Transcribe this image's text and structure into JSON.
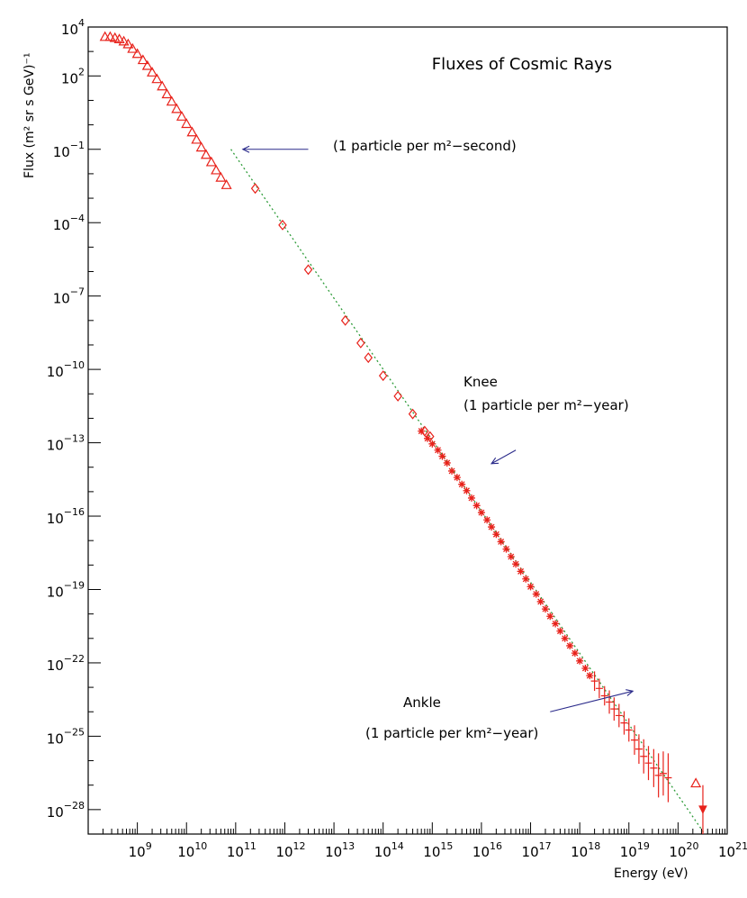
{
  "chart_data": {
    "type": "scatter",
    "title": "Fluxes of Cosmic Rays",
    "xlabel": "Energy (eV)",
    "ylabel": "Flux (m² sr s GeV)⁻¹",
    "xscale": "log",
    "yscale": "log",
    "xlim": [
      100000000.0,
      1e+21
    ],
    "ylim": [
      1e-29,
      10000.0
    ],
    "grid": false,
    "x_ticks": [
      {
        "base": "10",
        "exp": "9",
        "value": 1000000000.0
      },
      {
        "base": "10",
        "exp": "10",
        "value": 10000000000.0
      },
      {
        "base": "10",
        "exp": "11",
        "value": 100000000000.0
      },
      {
        "base": "10",
        "exp": "12",
        "value": 1000000000000.0
      },
      {
        "base": "10",
        "exp": "13",
        "value": 10000000000000.0
      },
      {
        "base": "10",
        "exp": "14",
        "value": 100000000000000.0
      },
      {
        "base": "10",
        "exp": "15",
        "value": 1000000000000000.0
      },
      {
        "base": "10",
        "exp": "16",
        "value": 1e+16
      },
      {
        "base": "10",
        "exp": "17",
        "value": 1e+17
      },
      {
        "base": "10",
        "exp": "18",
        "value": 1e+18
      },
      {
        "base": "10",
        "exp": "19",
        "value": 1e+19
      },
      {
        "base": "10",
        "exp": "20",
        "value": 1e+20
      },
      {
        "base": "10",
        "exp": "21",
        "value": 1e+21
      }
    ],
    "y_ticks": [
      {
        "base": "10",
        "exp": "4",
        "value": 10000.0
      },
      {
        "base": "10",
        "exp": "2",
        "value": 100.0
      },
      {
        "base": "10",
        "exp": "−1",
        "value": 0.1
      },
      {
        "base": "10",
        "exp": "−4",
        "value": 0.0001
      },
      {
        "base": "10",
        "exp": "−7",
        "value": 1e-07
      },
      {
        "base": "10",
        "exp": "−10",
        "value": 1e-10
      },
      {
        "base": "10",
        "exp": "−13",
        "value": 1e-13
      },
      {
        "base": "10",
        "exp": "−16",
        "value": 1e-16
      },
      {
        "base": "10",
        "exp": "−19",
        "value": 1e-19
      },
      {
        "base": "10",
        "exp": "−22",
        "value": 1e-22
      },
      {
        "base": "10",
        "exp": "−25",
        "value": 1e-25
      },
      {
        "base": "10",
        "exp": "−28",
        "value": 1e-28
      }
    ],
    "series": [
      {
        "marker": "triangle",
        "color": "#e8211a",
        "points": [
          [
            220000000.0,
            4000
          ],
          [
            280000000.0,
            4000
          ],
          [
            350000000.0,
            3600
          ],
          [
            430000000.0,
            3200
          ],
          [
            530000000.0,
            2600
          ],
          [
            650000000.0,
            2000
          ],
          [
            800000000.0,
            1300
          ],
          [
            1000000000.0,
            800
          ],
          [
            1300000000.0,
            450
          ],
          [
            1600000000.0,
            260
          ],
          [
            2000000000.0,
            140
          ],
          [
            2500000000.0,
            75
          ],
          [
            3200000000.0,
            38
          ],
          [
            4000000000.0,
            18
          ],
          [
            5000000000.0,
            9
          ],
          [
            6300000000.0,
            4.5
          ],
          [
            8000000000.0,
            2.2
          ],
          [
            10000000000.0,
            1.1
          ],
          [
            13000000000.0,
            0.5
          ],
          [
            16000000000.0,
            0.25
          ],
          [
            20000000000.0,
            0.12
          ],
          [
            25000000000.0,
            0.06
          ],
          [
            32000000000.0,
            0.03
          ],
          [
            40000000000.0,
            0.014
          ],
          [
            50000000000.0,
            0.007
          ],
          [
            65000000000.0,
            0.0035
          ],
          [
            2.3e+20,
            1.2e-27
          ]
        ]
      },
      {
        "marker": "diamond",
        "color": "#e8211a",
        "points": [
          [
            250000000000.0,
            0.0025
          ],
          [
            900000000000.0,
            8e-05
          ],
          [
            3000000000000.0,
            1.2e-06
          ],
          [
            17000000000000.0,
            1e-08
          ],
          [
            35000000000000.0,
            1.2e-09
          ],
          [
            50000000000000.0,
            3e-10
          ],
          [
            100000000000000.0,
            5.5e-11
          ],
          [
            200000000000000.0,
            8e-12
          ],
          [
            400000000000000.0,
            1.5e-12
          ],
          [
            700000000000000.0,
            3e-13
          ],
          [
            900000000000000.0,
            1.8e-13
          ]
        ]
      },
      {
        "marker": "star",
        "color": "#e8211a",
        "points": [
          [
            600000000000000.0,
            3e-13
          ],
          [
            800000000000000.0,
            1.5e-13
          ],
          [
            1000000000000000.0,
            9e-14
          ],
          [
            1300000000000000.0,
            5e-14
          ],
          [
            1600000000000000.0,
            2.8e-14
          ],
          [
            2000000000000000.0,
            1.5e-14
          ],
          [
            2500000000000000.0,
            7e-15
          ],
          [
            3200000000000000.0,
            3.8e-15
          ],
          [
            4000000000000000.0,
            2e-15
          ],
          [
            5000000000000000.0,
            1.1e-15
          ],
          [
            6300000000000000.0,
            5.5e-16
          ],
          [
            8000000000000000.0,
            2.7e-16
          ],
          [
            1e+16,
            1.4e-16
          ],
          [
            1.3e+16,
            7e-17
          ],
          [
            1.6e+16,
            3.6e-17
          ],
          [
            2e+16,
            1.8e-17
          ],
          [
            2.5e+16,
            9e-18
          ],
          [
            3.2e+16,
            4.5e-18
          ],
          [
            4e+16,
            2.2e-18
          ],
          [
            5e+16,
            1.1e-18
          ],
          [
            6.3e+16,
            5.5e-19
          ],
          [
            8e+16,
            2.7e-19
          ],
          [
            1e+17,
            1.3e-19
          ],
          [
            1.3e+17,
            6.5e-20
          ],
          [
            1.6e+17,
            3.2e-20
          ],
          [
            2e+17,
            1.6e-20
          ],
          [
            2.5e+17,
            8e-21
          ],
          [
            3.2e+17,
            4e-21
          ],
          [
            4e+17,
            2e-21
          ],
          [
            5e+17,
            1e-21
          ],
          [
            6.3e+17,
            5e-22
          ],
          [
            8e+17,
            2.5e-22
          ],
          [
            1e+18,
            1.2e-22
          ],
          [
            1.3e+18,
            6e-23
          ],
          [
            1.6e+18,
            3e-23
          ]
        ]
      },
      {
        "marker": "errorbar",
        "color": "#e8211a",
        "points": [
          [
            2e+18,
            1.8e-23,
            2.5,
            2.5
          ],
          [
            2.5e+18,
            9e-24,
            2.5,
            2.5
          ],
          [
            3.2e+18,
            4.5e-24,
            2.5,
            2.5
          ],
          [
            4e+18,
            2.5e-24,
            3,
            3
          ],
          [
            5e+18,
            1.3e-24,
            3,
            3
          ],
          [
            6.3e+18,
            7e-25,
            3,
            3
          ],
          [
            8e+18,
            3.5e-25,
            3,
            3
          ],
          [
            1e+19,
            1.8e-25,
            3,
            3
          ],
          [
            1.3e+19,
            7e-26,
            4,
            4
          ],
          [
            1.6e+19,
            3e-26,
            4,
            4
          ],
          [
            2e+19,
            1.5e-26,
            5,
            5
          ],
          [
            2.5e+19,
            8e-27,
            5,
            5
          ],
          [
            3.2e+19,
            5e-27,
            6,
            6
          ],
          [
            4e+19,
            2.5e-27,
            8,
            8
          ],
          [
            5e+19,
            3e-27,
            8,
            8
          ],
          [
            6.3e+19,
            2e-27,
            10,
            10
          ]
        ]
      },
      {
        "marker": "filled-triangle-down",
        "color": "#e8211a",
        "points": [
          [
            3.2e+20,
            1e-28,
            10,
            10
          ]
        ]
      }
    ],
    "reference_line": {
      "style": "dotted",
      "color": "#2f9c3a",
      "points": [
        [
          80000000000.0,
          0.1
        ],
        [
          3.5e+20,
          1e-29
        ]
      ]
    },
    "annotations": {
      "second": {
        "text": "(1 particle per m²−second)",
        "arrow_from": [
          3000000000000.0,
          0.1
        ],
        "arrow_to": [
          140000000000.0,
          0.1
        ]
      },
      "knee": {
        "label": "Knee",
        "text": "(1 particle per m²−year)",
        "arrow_from": [
          5e+16,
          5e-14
        ],
        "arrow_to": [
          1.6e+16,
          1.4e-14
        ]
      },
      "ankle": {
        "label": "Ankle",
        "text": "(1 particle per km²−year)",
        "arrow_from": [
          2.5e+17,
          1e-24
        ],
        "arrow_to": [
          1.2e+19,
          7e-24
        ]
      }
    }
  }
}
